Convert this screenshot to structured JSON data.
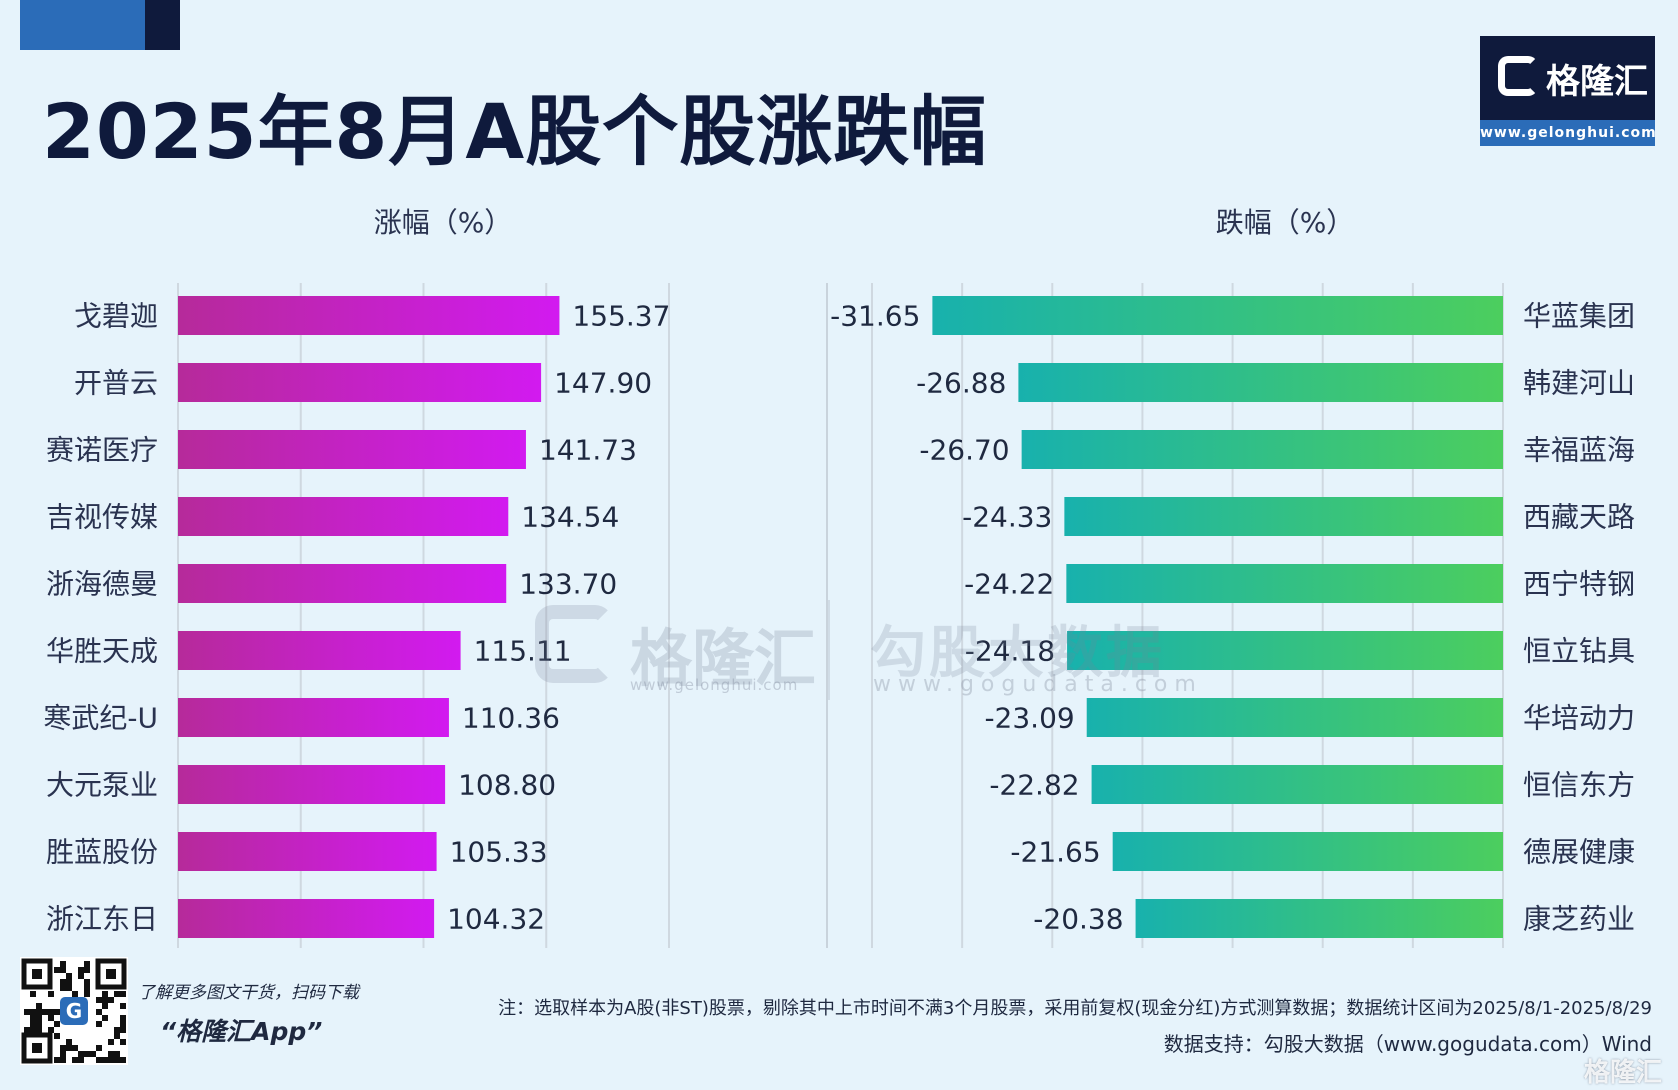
{
  "title": "2025年8月A股个股涨跌幅",
  "logo": {
    "name": "格隆汇",
    "url": "www.gelonghui.com"
  },
  "colors": {
    "gain_bar_start": "#b62a9a",
    "gain_bar_end": "#d21af0",
    "loss_bar_start": "#18b1ad",
    "loss_bar_end": "#4cce5e",
    "title": "#0f1a3c",
    "accent_blue": "#2b6cb8",
    "background": "#e6f3fb"
  },
  "chart_data": [
    {
      "type": "bar",
      "orientation": "horizontal",
      "xlabel": "涨幅（%）",
      "xlim": [
        0,
        200
      ],
      "grid": true,
      "categories": [
        "戈碧迦",
        "开普云",
        "赛诺医疗",
        "吉视传媒",
        "浙海德曼",
        "华胜天成",
        "寒武纪-U",
        "大元泵业",
        "胜蓝股份",
        "浙江东日"
      ],
      "values": [
        155.37,
        147.9,
        141.73,
        134.54,
        133.7,
        115.11,
        110.36,
        108.8,
        105.33,
        104.32
      ],
      "value_labels": [
        "155.37",
        "147.90",
        "141.73",
        "134.54",
        "133.70",
        "115.11",
        "110.36",
        "108.80",
        "105.33",
        "104.32"
      ]
    },
    {
      "type": "bar",
      "orientation": "horizontal",
      "xlabel": "跌幅（%）",
      "xlim": [
        -35,
        0
      ],
      "grid": true,
      "categories": [
        "华蓝集团",
        "韩建河山",
        "幸福蓝海",
        "西藏天路",
        "西宁特钢",
        "恒立钻具",
        "华培动力",
        "恒信东方",
        "德展健康",
        "康芝药业"
      ],
      "values": [
        -31.65,
        -26.88,
        -26.7,
        -24.33,
        -24.22,
        -24.18,
        -23.09,
        -22.82,
        -21.65,
        -20.38
      ],
      "value_labels": [
        "-31.65",
        "-26.88",
        "-26.70",
        "-24.33",
        "-24.22",
        "-24.18",
        "-23.09",
        "-22.82",
        "-21.65",
        "-20.38"
      ]
    }
  ],
  "watermarks": {
    "left_name": "格隆汇",
    "left_url": "www.gelonghui.com",
    "right_name": "勾股大数据",
    "right_url": "www.gogudata.com",
    "corner": "格隆汇"
  },
  "footer": {
    "qr_badge": "G",
    "promo_line": "了解更多图文干货，扫码下载",
    "promo_app": "“格隆汇App”",
    "note": "注：选取样本为A股(非ST)股票，剔除其中上市时间不满3个月股票，采用前复权(现金分红)方式测算数据；数据统计区间为2025/8/1-2025/8/29",
    "source": "数据支持：勾股大数据（www.gogudata.com）Wind"
  }
}
